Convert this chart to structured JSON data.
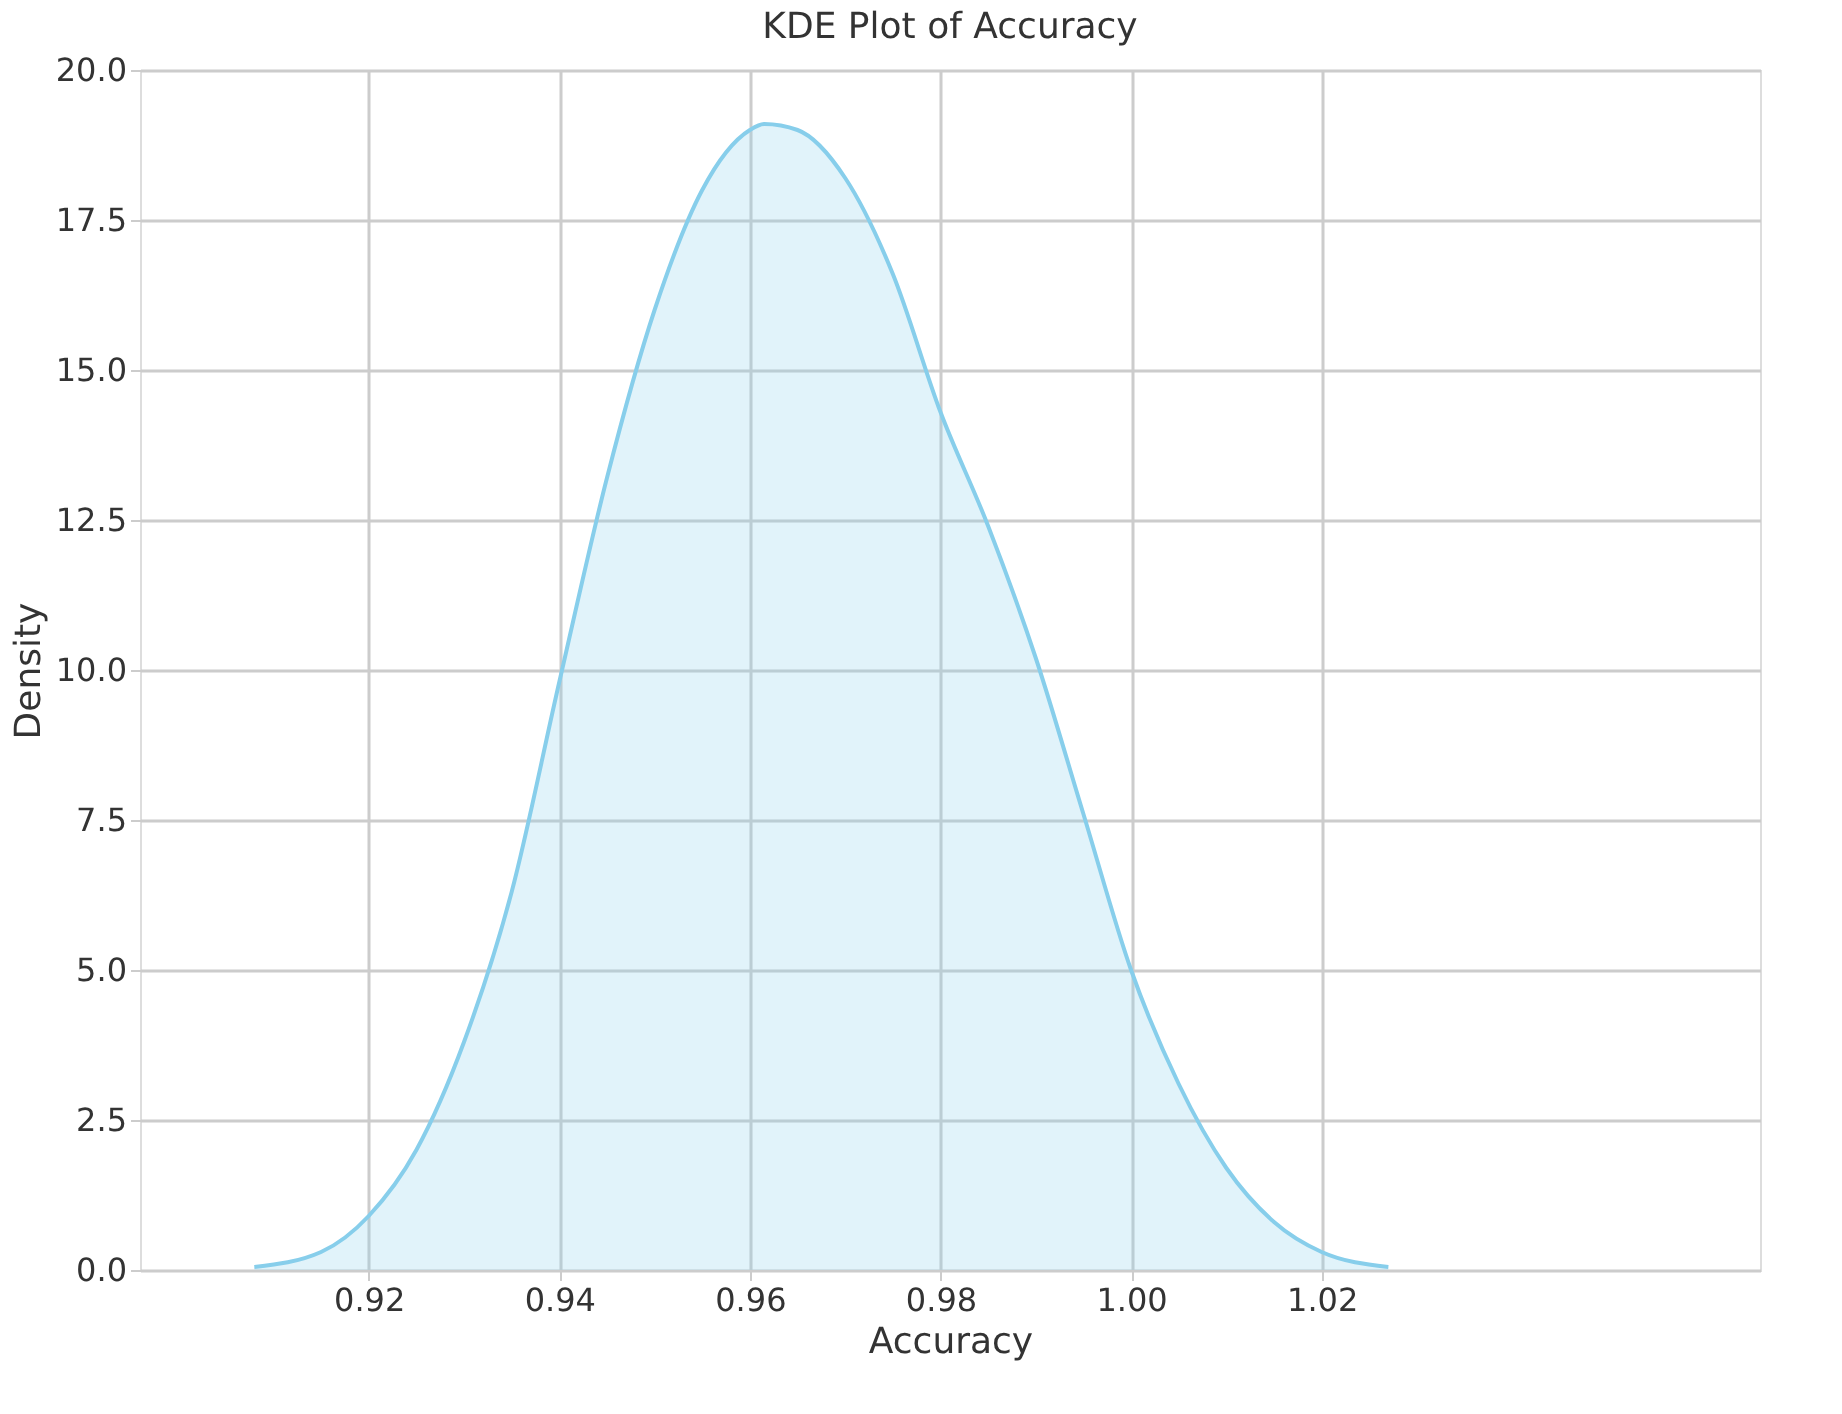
{
  "chart_data": {
    "type": "area",
    "title": "KDE Plot of Accuracy",
    "xlabel": "Accuracy",
    "ylabel": "Density",
    "x": [
      0.908,
      0.915,
      0.92,
      0.925,
      0.93,
      0.935,
      0.94,
      0.945,
      0.95,
      0.955,
      0.96,
      0.9615,
      0.965,
      0.97,
      0.975,
      0.98,
      0.985,
      0.99,
      0.995,
      1.0,
      1.005,
      1.01,
      1.015,
      1.02,
      1.027
    ],
    "series": [
      {
        "color": "#87ceeb",
        "values": [
          0.05,
          0.3,
          0.9,
          2.0,
          3.8,
          6.3,
          9.8,
          13.2,
          16.0,
          18.0,
          19.0,
          19.1,
          19.0,
          18.2,
          16.6,
          14.3,
          12.4,
          10.2,
          7.6,
          5.0,
          3.1,
          1.7,
          0.8,
          0.3,
          0.05
        ]
      }
    ],
    "xlim": [
      0.896,
      1.066
    ],
    "xticks": [
      {
        "value": 0.92,
        "label": "0.92"
      },
      {
        "value": 0.94,
        "label": "0.94"
      },
      {
        "value": 0.96,
        "label": "0.96"
      },
      {
        "value": 0.98,
        "label": "0.98"
      },
      {
        "value": 1.0,
        "label": "1.00"
      },
      {
        "value": 1.02,
        "label": "1.02"
      }
    ],
    "ylim": [
      0,
      20
    ],
    "yticks": [
      {
        "value": 0,
        "label": "0.0"
      },
      {
        "value": 2.5,
        "label": "2.5"
      },
      {
        "value": 5,
        "label": "5.0"
      },
      {
        "value": 7.5,
        "label": "7.5"
      },
      {
        "value": 10,
        "label": "10.0"
      },
      {
        "value": 12.5,
        "label": "12.5"
      },
      {
        "value": 15,
        "label": "15.0"
      },
      {
        "value": 17.5,
        "label": "17.5"
      },
      {
        "value": 20,
        "label": "20.0"
      }
    ],
    "grid": true
  }
}
